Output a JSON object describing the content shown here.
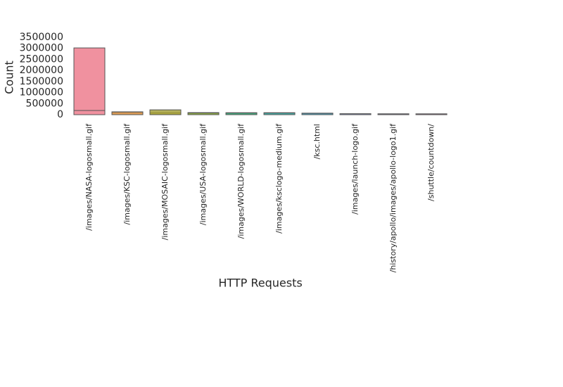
{
  "chart_data": {
    "type": "bar",
    "xlabel": "HTTP Requests",
    "ylabel": "Count",
    "categories": [
      "/images/NASA-logosmall.gif",
      "/images/KSC-logosmall.gif",
      "/images/MOSAIC-logosmall.gif",
      "/images/USA-logosmall.gif",
      "/images/WORLD-logosmall.gif",
      "/images/ksclogo-medium.gif",
      "/ksc.html",
      "/images/launch-logo.gif",
      "/history/apollo/images/apollo-logo1.gif",
      "/shuttle/countdown/"
    ],
    "colors": [
      "#f0919f",
      "#d99a55",
      "#a8a33e",
      "#8eac47",
      "#45ab80",
      "#47aba6",
      "#4aa8c6",
      "#8fa3e0",
      "#c39ae2",
      "#e592cc"
    ],
    "series": [
      {
        "values": [
          3020000,
          130000,
          100000,
          95000,
          90000,
          90000,
          70000,
          45000,
          40000,
          38000
        ]
      },
      {
        "values": [
          190000,
          120000,
          220000,
          80000,
          80000,
          80000,
          60000,
          40000,
          35000,
          35000
        ]
      }
    ],
    "ylim": [
      0,
      3500000
    ],
    "yticks": [
      0,
      500000,
      1000000,
      1500000,
      2000000,
      2500000,
      3000000,
      3500000
    ],
    "grid": false
  }
}
